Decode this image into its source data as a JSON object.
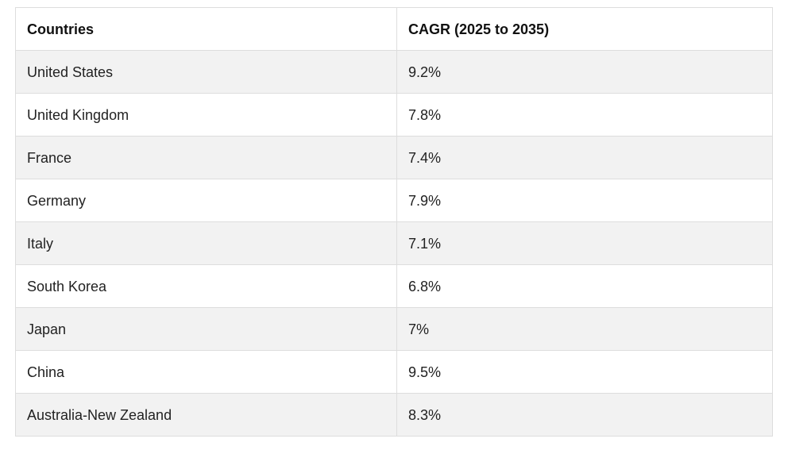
{
  "table": {
    "headers": [
      "Countries",
      "CAGR (2025 to 2035)"
    ],
    "rows": [
      [
        "United States",
        "9.2%"
      ],
      [
        "United Kingdom",
        "7.8%"
      ],
      [
        "France",
        "7.4%"
      ],
      [
        "Germany",
        "7.9%"
      ],
      [
        "Italy",
        "7.1%"
      ],
      [
        "South Korea",
        "6.8%"
      ],
      [
        "Japan",
        "7%"
      ],
      [
        "China",
        "9.5%"
      ],
      [
        "Australia-New Zealand",
        "8.3%"
      ]
    ]
  },
  "colors": {
    "stripe": "#f2f2f2",
    "border": "#dddddd",
    "text": "#222222"
  }
}
